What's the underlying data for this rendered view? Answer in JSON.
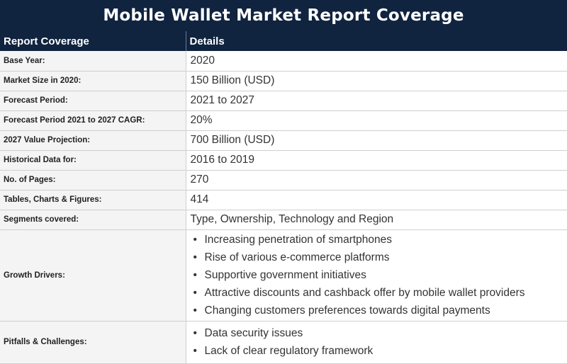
{
  "title": "Mobile Wallet Market Report Coverage",
  "table": {
    "headers": [
      "Report Coverage",
      "Details"
    ],
    "rows": [
      {
        "label": "Base Year:",
        "value": "2020"
      },
      {
        "label": "Market Size in 2020:",
        "value": "150 Billion (USD)"
      },
      {
        "label": "Forecast Period:",
        "value": "2021 to 2027"
      },
      {
        "label": "Forecast Period 2021 to 2027 CAGR:",
        "value": "20%"
      },
      {
        "label": "2027 Value Projection:",
        "value": "700 Billion (USD)"
      },
      {
        "label": "Historical Data for:",
        "value": "2016 to 2019"
      },
      {
        "label": "No. of Pages:",
        "value": "270"
      },
      {
        "label": "Tables, Charts & Figures:",
        "value": "414"
      },
      {
        "label": "Segments covered:",
        "value": "Type, Ownership, Technology and Region"
      }
    ],
    "growth_drivers": {
      "label": "Growth Drivers:",
      "items": [
        "Increasing penetration of smartphones",
        "Rise of various e-commerce platforms",
        "Supportive government initiatives",
        "Attractive discounts and cashback offer by mobile wallet providers",
        "Changing customers preferences towards digital payments"
      ]
    },
    "pitfalls": {
      "label": "Pitfalls & Challenges:",
      "items": [
        "Data security issues",
        "Lack of clear regulatory framework"
      ]
    }
  },
  "colors": {
    "banner_bg": "#10233f",
    "label_bg": "#f4f4f4",
    "border": "#cfcfcf"
  }
}
